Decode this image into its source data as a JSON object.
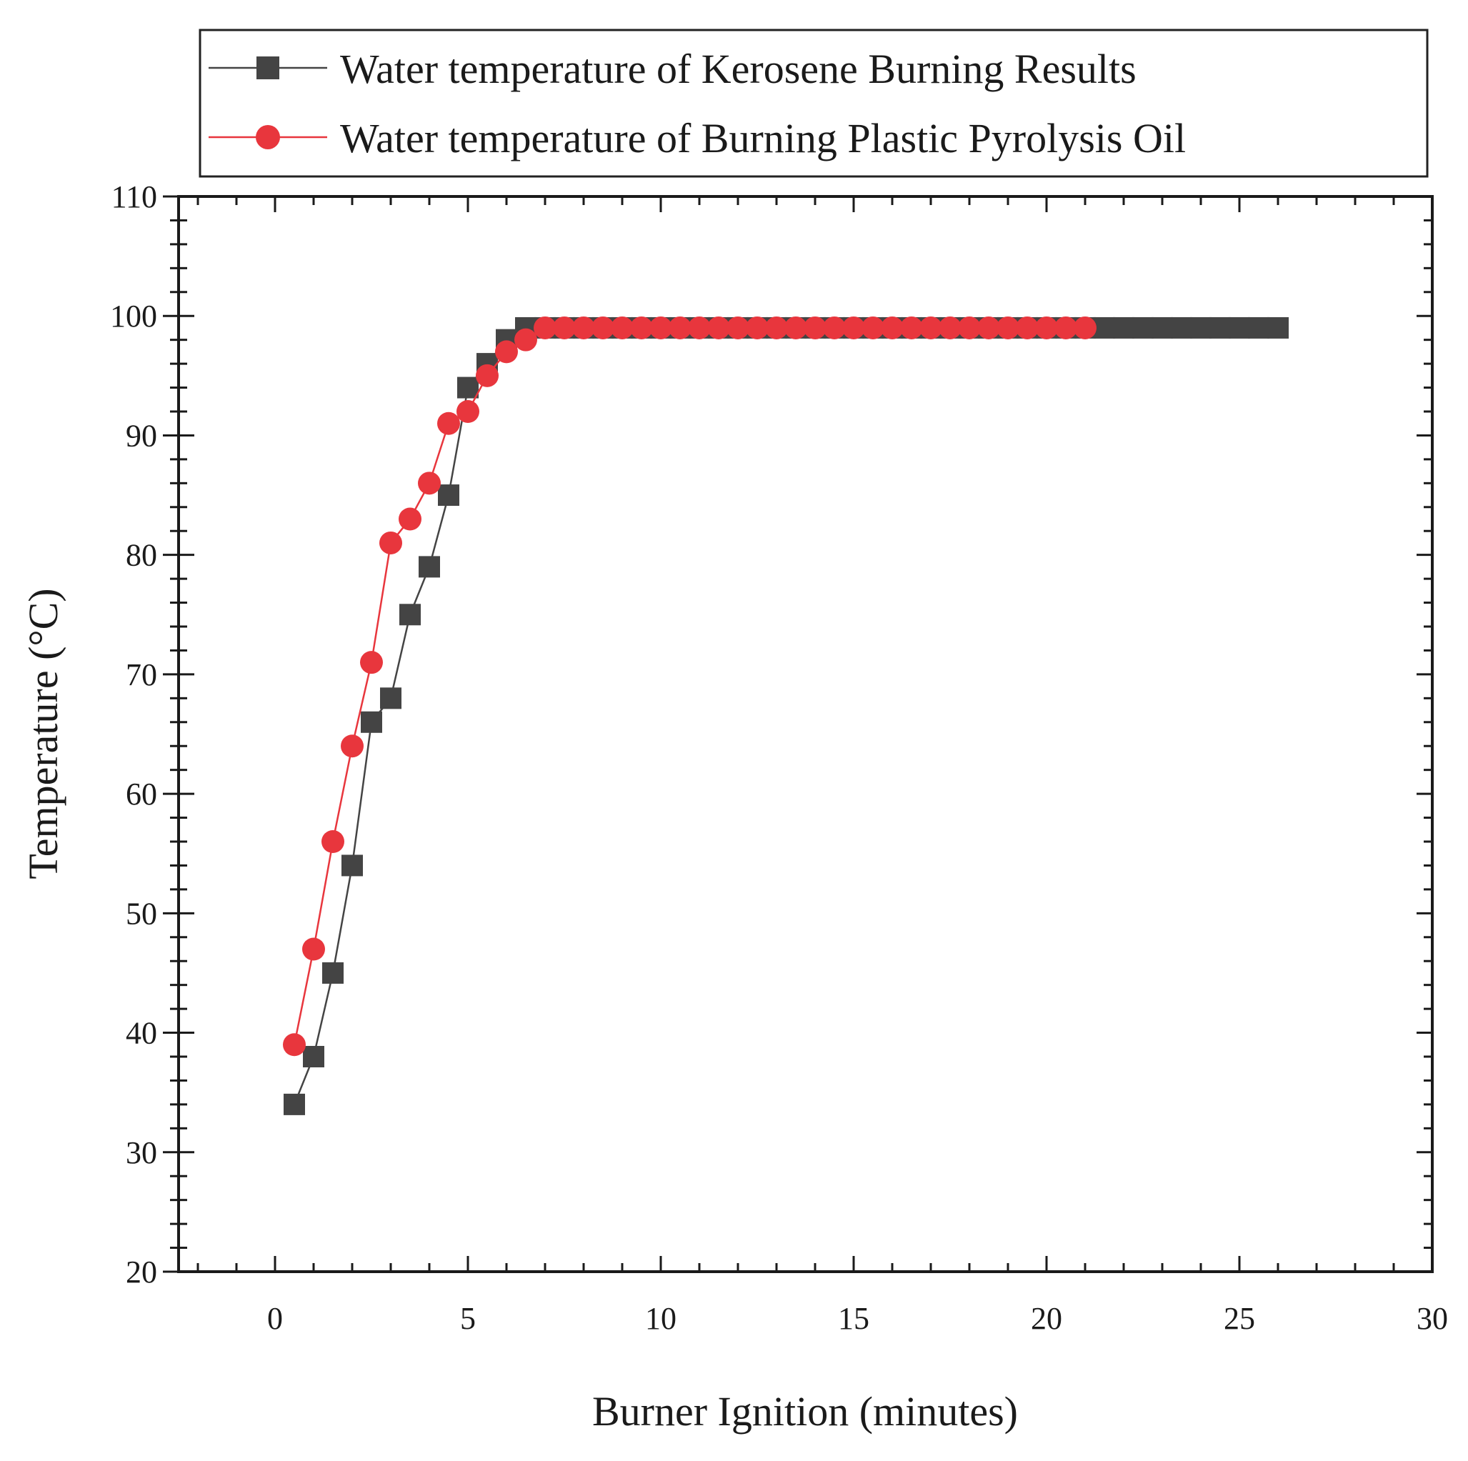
{
  "chart_data": {
    "type": "line",
    "title": "",
    "xlabel": "Burner Ignition (minutes)",
    "ylabel": "Temperature (°C)",
    "xlim": [
      -2.5,
      30
    ],
    "ylim": [
      20,
      110
    ],
    "xticks": [
      0,
      5,
      10,
      15,
      20,
      25,
      30
    ],
    "yticks": [
      20,
      30,
      40,
      50,
      60,
      70,
      80,
      90,
      100,
      110
    ],
    "grid": false,
    "legend_position": "top",
    "series": [
      {
        "name": "Water temperature of Kerosene Burning Results",
        "color": "#444444",
        "marker": "square",
        "x": [
          0.5,
          1,
          1.5,
          2,
          2.5,
          3,
          3.5,
          4,
          4.5,
          5,
          5.5,
          6,
          6.5,
          7,
          7.5,
          8,
          8.5,
          9,
          9.5,
          10,
          10.5,
          11,
          11.5,
          12,
          12.5,
          13,
          13.5,
          14,
          14.5,
          15,
          15.5,
          16,
          16.5,
          17,
          17.5,
          18,
          18.5,
          19,
          19.5,
          20,
          20.5,
          21,
          21.5,
          22,
          22.5,
          23,
          23.5,
          24,
          24.5,
          25,
          25.5,
          26
        ],
        "y": [
          34,
          38,
          45,
          54,
          66,
          68,
          75,
          79,
          85,
          94,
          96,
          98,
          99,
          99,
          99,
          99,
          99,
          99,
          99,
          99,
          99,
          99,
          99,
          99,
          99,
          99,
          99,
          99,
          99,
          99,
          99,
          99,
          99,
          99,
          99,
          99,
          99,
          99,
          99,
          99,
          99,
          99,
          99,
          99,
          99,
          99,
          99,
          99,
          99,
          99,
          99,
          99
        ]
      },
      {
        "name": "Water temperature of Burning Plastic Pyrolysis Oil",
        "color": "#e8363d",
        "marker": "circle",
        "x": [
          0.5,
          1,
          1.5,
          2,
          2.5,
          3,
          3.5,
          4,
          4.5,
          5,
          5.5,
          6,
          6.5,
          7,
          7.5,
          8,
          8.5,
          9,
          9.5,
          10,
          10.5,
          11,
          11.5,
          12,
          12.5,
          13,
          13.5,
          14,
          14.5,
          15,
          15.5,
          16,
          16.5,
          17,
          17.5,
          18,
          18.5,
          19,
          19.5,
          20,
          20.5,
          21
        ],
        "y": [
          39,
          47,
          56,
          64,
          71,
          81,
          83,
          86,
          91,
          92,
          95,
          97,
          98,
          99,
          99,
          99,
          99,
          99,
          99,
          99,
          99,
          99,
          99,
          99,
          99,
          99,
          99,
          99,
          99,
          99,
          99,
          99,
          99,
          99,
          99,
          99,
          99,
          99,
          99,
          99,
          99,
          99
        ]
      }
    ]
  }
}
